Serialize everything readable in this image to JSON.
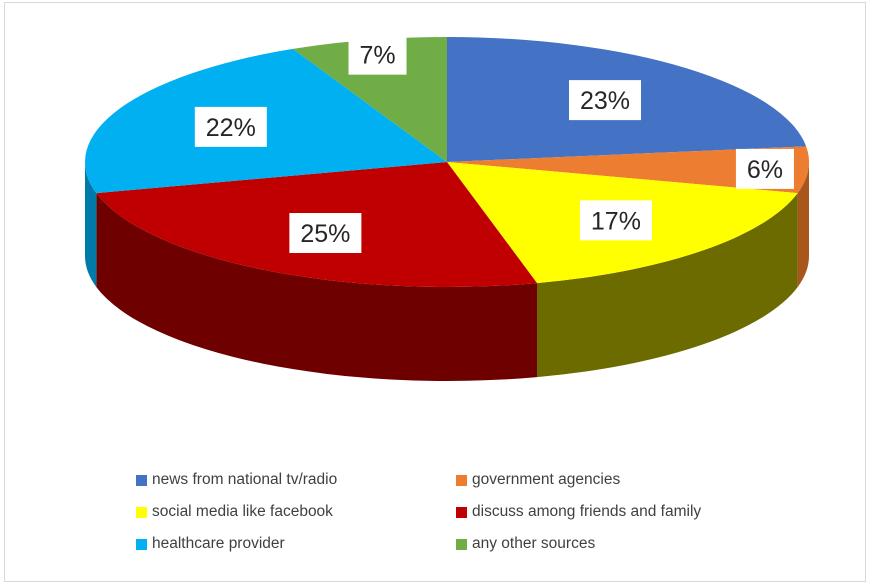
{
  "chart_data": {
    "type": "pie",
    "style": "3d",
    "title": "",
    "legend_position": "bottom",
    "slices": [
      {
        "name": "news from national tv/radio",
        "value": 23,
        "label": "23%",
        "color": "#4472C4",
        "side_color": "#2F528F"
      },
      {
        "name": "government agencies",
        "value": 6,
        "label": "6%",
        "color": "#ED7D31",
        "side_color": "#A8561C"
      },
      {
        "name": "social media like facebook",
        "value": 17,
        "label": "17%",
        "color": "#FFFF00",
        "side_color": "#6B6B00"
      },
      {
        "name": "discuss among friends and family",
        "value": 25,
        "label": "25%",
        "color": "#C00000",
        "side_color": "#6E0000"
      },
      {
        "name": "healthcare provider",
        "value": 22,
        "label": "22%",
        "color": "#00B0F0",
        "side_color": "#007AA8"
      },
      {
        "name": "any other sources",
        "value": 7,
        "label": "7%",
        "color": "#70AD47",
        "side_color": "#4E7A30"
      }
    ]
  }
}
